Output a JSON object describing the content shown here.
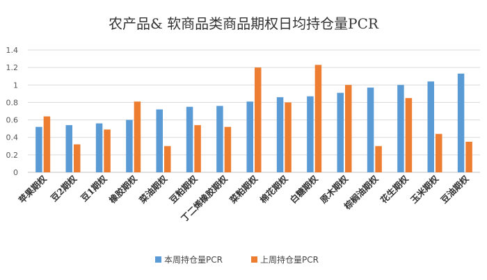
{
  "chart_data": {
    "type": "bar",
    "title": "农产品& 软商品类商品期权日均持仓量PCR",
    "categories": [
      "苹果期权",
      "豆2期权",
      "豆1期权",
      "橡胶期权",
      "菜油期权",
      "豆粕期权",
      "丁二烯橡胶期权",
      "菜粕期权",
      "棉花期权",
      "白糖期权",
      "原木期权",
      "棕榈油期权",
      "花生期权",
      "玉米期权",
      "豆油期权"
    ],
    "series": [
      {
        "name": "本周持仓量PCR",
        "color": "#5B9BD5",
        "values": [
          0.52,
          0.54,
          0.56,
          0.6,
          0.72,
          0.75,
          0.76,
          0.81,
          0.86,
          0.87,
          0.91,
          0.97,
          1.0,
          1.04,
          1.13
        ]
      },
      {
        "name": "上周持仓量PCR",
        "color": "#ED7D31",
        "values": [
          0.64,
          0.32,
          0.49,
          0.81,
          0.3,
          0.54,
          0.52,
          1.2,
          0.8,
          1.23,
          1.0,
          0.3,
          0.85,
          0.44,
          0.35
        ]
      }
    ],
    "ylim": [
      0,
      1.4
    ],
    "yticks": [
      "0",
      "0.2",
      "0.4",
      "0.6",
      "0.8",
      "1",
      "1.2",
      "1.4"
    ],
    "grid": true,
    "legend": "bottom"
  }
}
